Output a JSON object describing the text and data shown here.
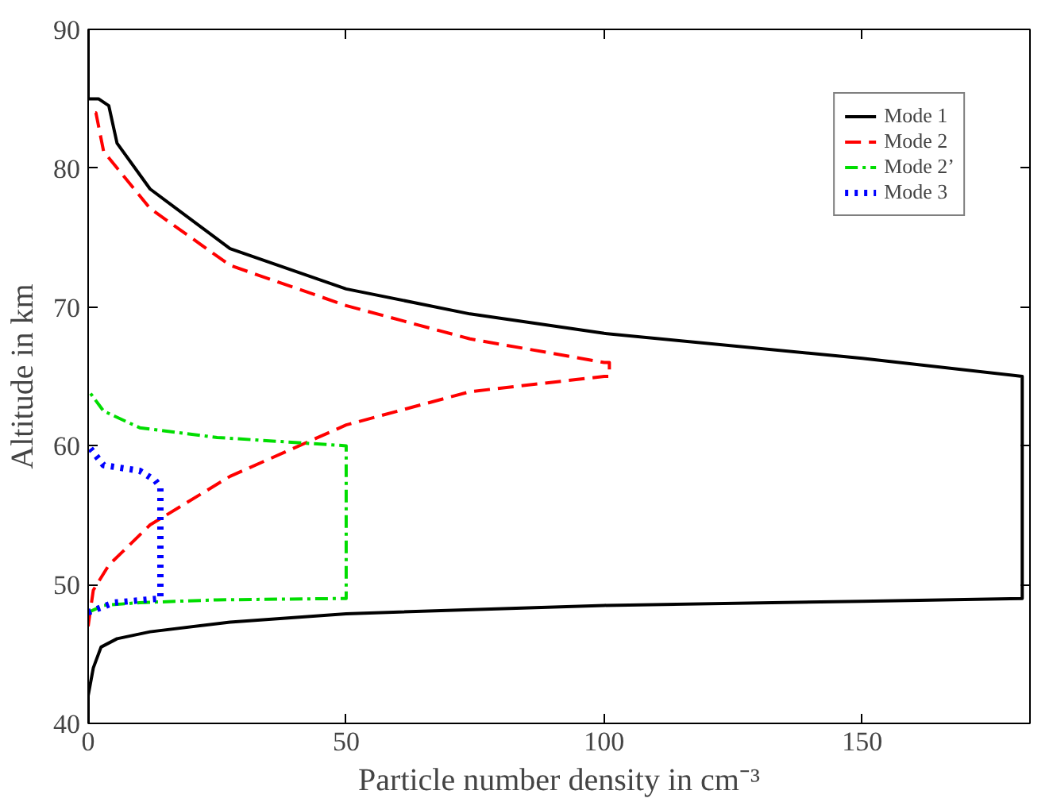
{
  "chart_data": {
    "type": "line",
    "xlabel": "Particle number density in cm⁻³",
    "ylabel": "Altitude in km",
    "xlim": [
      0,
      182.5
    ],
    "ylim": [
      40,
      90
    ],
    "xticks": [
      0,
      50,
      100,
      150
    ],
    "yticks": [
      40,
      50,
      60,
      70,
      80,
      90
    ],
    "grid": false,
    "legend": "top right",
    "marker": "none",
    "series": [
      {
        "name": "Mode 1",
        "color": "#000000",
        "line_style": "solid",
        "x": [
          0,
          0,
          1,
          2.5,
          5.6,
          12,
          27.5,
          50,
          100,
          150,
          181,
          181,
          150,
          100,
          74,
          50,
          27.5,
          12,
          5.6,
          4,
          2,
          0,
          0
        ],
        "values": [
          40,
          42,
          44,
          45.5,
          46.1,
          46.6,
          47.3,
          47.9,
          48.5,
          48.8,
          49,
          65,
          66.3,
          68.1,
          69.5,
          71.3,
          74.2,
          78.5,
          81.8,
          84.5,
          85,
          85,
          90
        ]
      },
      {
        "name": "Mode 2",
        "color": "#ff0000",
        "line_style": "dashed",
        "x": [
          0,
          1,
          4,
          12,
          27.5,
          50,
          74,
          100,
          101,
          101,
          100,
          74,
          50,
          27.5,
          12,
          3,
          1.5,
          0
        ],
        "values": [
          47,
          49.6,
          51.4,
          54.3,
          57.8,
          61.5,
          63.9,
          65,
          65,
          66,
          66,
          67.7,
          70.1,
          73,
          77.1,
          81.2,
          84,
          84
        ]
      },
      {
        "name": "Mode 2’",
        "color": "#00dd00",
        "line_style": "dashdot",
        "x": [
          0,
          3,
          10,
          25,
          50,
          50,
          25,
          10,
          3,
          0
        ],
        "values": [
          48,
          48.5,
          48.7,
          48.9,
          49,
          60,
          60.6,
          61.3,
          62.5,
          64
        ]
      },
      {
        "name": "Mode 3",
        "color": "#0000ff",
        "line_style": "dotted",
        "x": [
          0,
          5,
          14,
          14,
          13,
          10,
          3,
          0
        ],
        "values": [
          48,
          48.7,
          49,
          57,
          57.5,
          58.2,
          58.6,
          60
        ]
      }
    ]
  }
}
